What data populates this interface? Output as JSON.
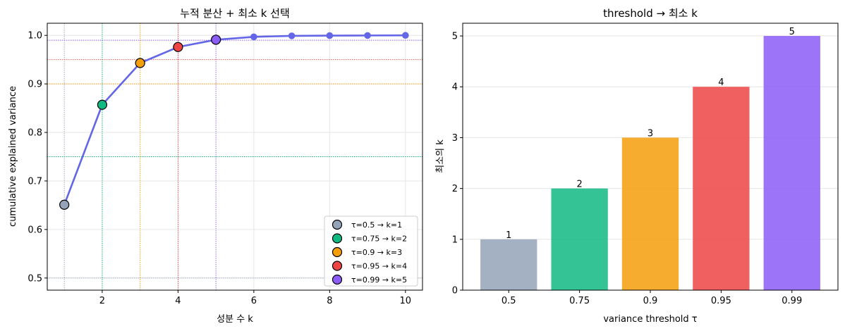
{
  "colors": {
    "line": "#6366e6",
    "gray": "#94a3b8",
    "green": "#10b981",
    "orange": "#f59e0b",
    "red": "#ef4444",
    "purple": "#8b5cf6"
  },
  "chart_data": [
    {
      "type": "line",
      "title": "누적 분산 + 최소 k 선택",
      "xlabel": "성분 수 k",
      "ylabel": "cumulative explained variance",
      "xlim": [
        0.55,
        10.45
      ],
      "ylim": [
        0.475,
        1.025
      ],
      "xticks": [
        2,
        4,
        6,
        8,
        10
      ],
      "yticks": [
        0.5,
        0.6,
        0.7,
        0.8,
        0.9,
        1.0
      ],
      "ytick_labels": [
        "0.5",
        "0.6",
        "0.7",
        "0.8",
        "0.9",
        "1.0"
      ],
      "grid": true,
      "x": [
        1,
        2,
        3,
        4,
        5,
        6,
        7,
        8,
        9,
        10
      ],
      "y": [
        0.651,
        0.857,
        0.943,
        0.976,
        0.991,
        0.997,
        0.999,
        0.9995,
        0.9998,
        1.0
      ],
      "thresholds": [
        {
          "tau": 0.5,
          "k": 1,
          "color": "#94a3b8",
          "label": "τ=0.5 → k=1"
        },
        {
          "tau": 0.75,
          "k": 2,
          "color": "#10b981",
          "label": "τ=0.75 → k=2"
        },
        {
          "tau": 0.9,
          "k": 3,
          "color": "#f59e0b",
          "label": "τ=0.9 → k=3"
        },
        {
          "tau": 0.95,
          "k": 4,
          "color": "#ef4444",
          "label": "τ=0.95 → k=4"
        },
        {
          "tau": 0.99,
          "k": 5,
          "color": "#8b5cf6",
          "label": "τ=0.99 → k=5"
        }
      ],
      "legend_position": "lower-right"
    },
    {
      "type": "bar",
      "title": "threshold → 최소 k",
      "xlabel": "variance threshold τ",
      "ylabel": "최소의 k",
      "categories": [
        "0.5",
        "0.75",
        "0.9",
        "0.95",
        "0.99"
      ],
      "values": [
        1,
        2,
        3,
        4,
        5
      ],
      "value_labels": [
        "1",
        "2",
        "3",
        "4",
        "5"
      ],
      "bar_colors": [
        "#94a3b8",
        "#10b981",
        "#f59e0b",
        "#ef4444",
        "#8b5cf6"
      ],
      "ylim": [
        0,
        5.25
      ],
      "yticks": [
        0,
        1,
        2,
        3,
        4,
        5
      ],
      "ytick_labels": [
        "0",
        "1",
        "2",
        "3",
        "4",
        "5"
      ],
      "grid": true
    }
  ]
}
